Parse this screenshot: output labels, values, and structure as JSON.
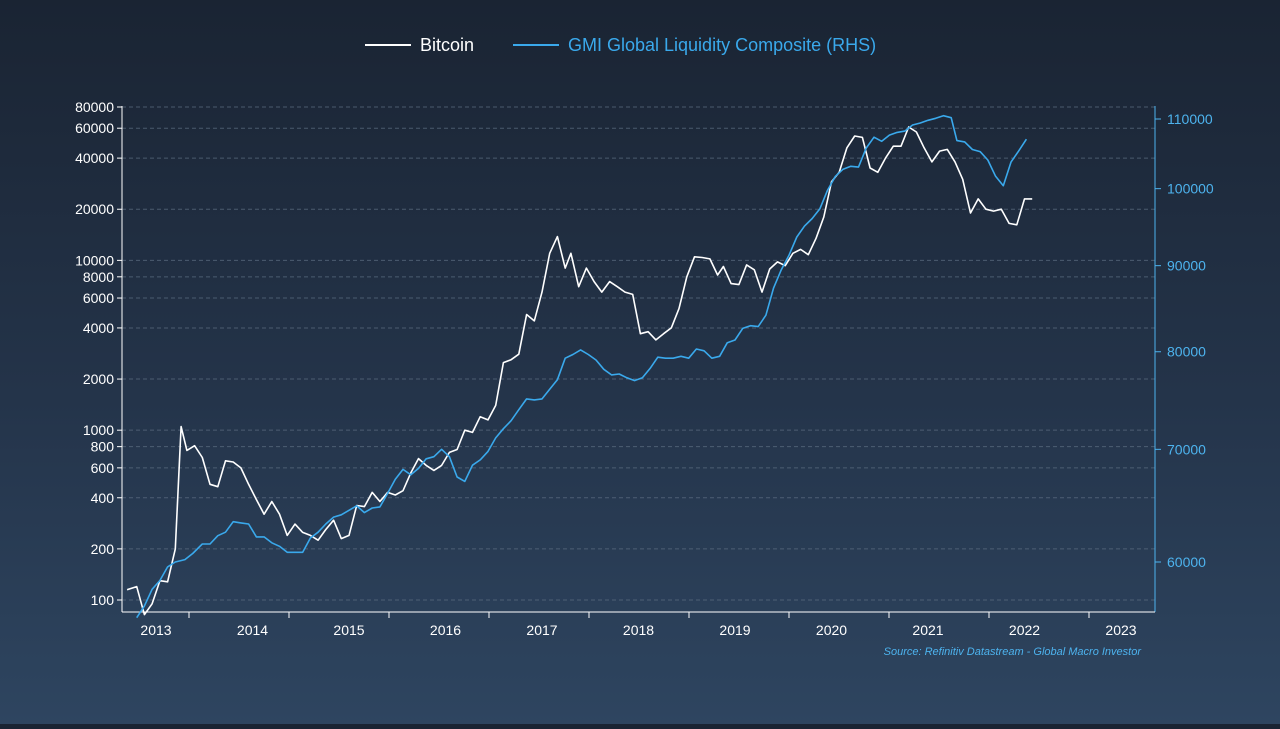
{
  "chart_data": {
    "type": "line",
    "x_ticks": [
      "2013",
      "2014",
      "2015",
      "2016",
      "2017",
      "2018",
      "2019",
      "2020",
      "2021",
      "2022",
      "2023"
    ],
    "y_left_scale": "log",
    "y_left_ticks": [
      "80000",
      "60000",
      "40000",
      "20000",
      "10000",
      "8000",
      "6000",
      "4000",
      "2000",
      "1000",
      "800",
      "600",
      "400",
      "200",
      "100"
    ],
    "y_right_ticks": [
      "110000",
      "100000",
      "90000",
      "80000",
      "70000",
      "60000"
    ],
    "source": "Source: Refinitiv Datastream - Global Macro Investor",
    "grid": "horizontal dashed",
    "legend_position": "top-center",
    "colors": {
      "btc": "#ffffff",
      "gli": "#3aa9ec",
      "axis_right": "#4db3ee",
      "grid": "#5e6f83"
    },
    "series": [
      {
        "name": "Bitcoin",
        "axis": "left",
        "color": "#ffffff",
        "points": [
          [
            2012.7,
            115
          ],
          [
            2012.8,
            120
          ],
          [
            2012.88,
            82
          ],
          [
            2012.96,
            95
          ],
          [
            2013.04,
            130
          ],
          [
            2013.12,
            128
          ],
          [
            2013.2,
            200
          ],
          [
            2013.26,
            1050
          ],
          [
            2013.32,
            760
          ],
          [
            2013.4,
            810
          ],
          [
            2013.48,
            690
          ],
          [
            2013.56,
            480
          ],
          [
            2013.64,
            465
          ],
          [
            2013.72,
            660
          ],
          [
            2013.8,
            650
          ],
          [
            2013.88,
            600
          ],
          [
            2013.96,
            480
          ],
          [
            2014.04,
            390
          ],
          [
            2014.12,
            320
          ],
          [
            2014.2,
            380
          ],
          [
            2014.28,
            320
          ],
          [
            2014.36,
            240
          ],
          [
            2014.44,
            280
          ],
          [
            2014.52,
            250
          ],
          [
            2014.6,
            240
          ],
          [
            2014.68,
            225
          ],
          [
            2014.76,
            260
          ],
          [
            2014.84,
            295
          ],
          [
            2014.92,
            230
          ],
          [
            2015.0,
            240
          ],
          [
            2015.08,
            360
          ],
          [
            2015.16,
            355
          ],
          [
            2015.24,
            430
          ],
          [
            2015.32,
            380
          ],
          [
            2015.4,
            430
          ],
          [
            2015.48,
            415
          ],
          [
            2015.56,
            440
          ],
          [
            2015.64,
            560
          ],
          [
            2015.72,
            680
          ],
          [
            2015.8,
            620
          ],
          [
            2015.88,
            580
          ],
          [
            2015.96,
            620
          ],
          [
            2016.04,
            740
          ],
          [
            2016.12,
            770
          ],
          [
            2016.2,
            1000
          ],
          [
            2016.28,
            970
          ],
          [
            2016.36,
            1200
          ],
          [
            2016.44,
            1150
          ],
          [
            2016.52,
            1400
          ],
          [
            2016.6,
            2500
          ],
          [
            2016.68,
            2600
          ],
          [
            2016.76,
            2800
          ],
          [
            2016.84,
            4800
          ],
          [
            2016.92,
            4400
          ],
          [
            2017.0,
            6500
          ],
          [
            2017.08,
            11000
          ],
          [
            2017.16,
            13800
          ],
          [
            2017.24,
            9000
          ],
          [
            2017.3,
            11000
          ],
          [
            2017.38,
            7000
          ],
          [
            2017.46,
            9000
          ],
          [
            2017.54,
            7500
          ],
          [
            2017.62,
            6500
          ],
          [
            2017.7,
            7500
          ],
          [
            2017.78,
            7000
          ],
          [
            2017.86,
            6500
          ],
          [
            2017.94,
            6300
          ],
          [
            2018.02,
            3700
          ],
          [
            2018.1,
            3800
          ],
          [
            2018.18,
            3400
          ],
          [
            2018.26,
            3700
          ],
          [
            2018.34,
            4000
          ],
          [
            2018.42,
            5200
          ],
          [
            2018.5,
            8000
          ],
          [
            2018.58,
            10500
          ],
          [
            2018.66,
            10400
          ],
          [
            2018.74,
            10200
          ],
          [
            2018.82,
            8200
          ],
          [
            2018.88,
            9200
          ],
          [
            2018.96,
            7300
          ],
          [
            2019.04,
            7200
          ],
          [
            2019.12,
            9400
          ],
          [
            2019.2,
            8800
          ],
          [
            2019.28,
            6500
          ],
          [
            2019.36,
            8900
          ],
          [
            2019.44,
            9800
          ],
          [
            2019.52,
            9300
          ],
          [
            2019.6,
            11000
          ],
          [
            2019.68,
            11600
          ],
          [
            2019.76,
            10800
          ],
          [
            2019.84,
            13500
          ],
          [
            2019.92,
            18000
          ],
          [
            2020.0,
            29000
          ],
          [
            2020.08,
            33000
          ],
          [
            2020.16,
            46000
          ],
          [
            2020.24,
            54000
          ],
          [
            2020.32,
            53000
          ],
          [
            2020.4,
            35000
          ],
          [
            2020.48,
            33000
          ],
          [
            2020.56,
            40000
          ],
          [
            2020.64,
            47000
          ],
          [
            2020.72,
            47000
          ],
          [
            2020.8,
            61000
          ],
          [
            2020.88,
            57000
          ],
          [
            2020.96,
            46000
          ],
          [
            2021.04,
            38000
          ],
          [
            2021.12,
            44000
          ],
          [
            2021.2,
            45000
          ],
          [
            2021.28,
            38000
          ],
          [
            2021.36,
            30000
          ],
          [
            2021.44,
            19000
          ],
          [
            2021.52,
            23000
          ],
          [
            2021.6,
            20000
          ],
          [
            2021.68,
            19500
          ],
          [
            2021.76,
            20000
          ],
          [
            2021.84,
            16500
          ],
          [
            2021.92,
            16200
          ],
          [
            2022.0,
            23000
          ],
          [
            2022.08,
            23000
          ]
        ]
      },
      {
        "name": "GMI Global Liquidity Composite (RHS)",
        "axis": "right",
        "color": "#3aa9ec",
        "points": [
          [
            2012.8,
            55600
          ],
          [
            2012.88,
            56500
          ],
          [
            2012.96,
            57800
          ],
          [
            2013.04,
            58500
          ],
          [
            2013.12,
            59600
          ],
          [
            2013.2,
            60000
          ],
          [
            2013.3,
            60200
          ],
          [
            2013.38,
            60700
          ],
          [
            2013.48,
            61500
          ],
          [
            2013.56,
            61500
          ],
          [
            2013.64,
            62200
          ],
          [
            2013.72,
            62500
          ],
          [
            2013.8,
            63400
          ],
          [
            2013.88,
            63300
          ],
          [
            2013.96,
            63200
          ],
          [
            2014.04,
            62100
          ],
          [
            2014.12,
            62100
          ],
          [
            2014.2,
            61600
          ],
          [
            2014.28,
            61300
          ],
          [
            2014.36,
            60800
          ],
          [
            2014.44,
            60800
          ],
          [
            2014.52,
            60800
          ],
          [
            2014.6,
            62000
          ],
          [
            2014.68,
            62500
          ],
          [
            2014.76,
            63200
          ],
          [
            2014.84,
            63800
          ],
          [
            2014.92,
            64000
          ],
          [
            2015.0,
            64400
          ],
          [
            2015.08,
            64800
          ],
          [
            2015.16,
            64200
          ],
          [
            2015.24,
            64600
          ],
          [
            2015.32,
            64700
          ],
          [
            2015.4,
            65900
          ],
          [
            2015.48,
            67200
          ],
          [
            2015.56,
            68100
          ],
          [
            2015.64,
            67600
          ],
          [
            2015.72,
            68200
          ],
          [
            2015.8,
            69100
          ],
          [
            2015.88,
            69300
          ],
          [
            2015.96,
            70000
          ],
          [
            2016.04,
            69300
          ],
          [
            2016.12,
            67400
          ],
          [
            2016.2,
            67000
          ],
          [
            2016.28,
            68500
          ],
          [
            2016.36,
            69000
          ],
          [
            2016.44,
            69800
          ],
          [
            2016.52,
            71100
          ],
          [
            2016.6,
            72000
          ],
          [
            2016.68,
            72800
          ],
          [
            2016.76,
            73900
          ],
          [
            2016.84,
            75000
          ],
          [
            2016.92,
            74900
          ],
          [
            2017.0,
            75000
          ],
          [
            2017.08,
            76000
          ],
          [
            2017.16,
            77000
          ],
          [
            2017.24,
            79300
          ],
          [
            2017.32,
            79700
          ],
          [
            2017.4,
            80200
          ],
          [
            2017.48,
            79700
          ],
          [
            2017.56,
            79100
          ],
          [
            2017.64,
            78100
          ],
          [
            2017.72,
            77500
          ],
          [
            2017.8,
            77600
          ],
          [
            2017.88,
            77200
          ],
          [
            2017.96,
            76900
          ],
          [
            2018.04,
            77200
          ],
          [
            2018.12,
            78200
          ],
          [
            2018.2,
            79400
          ],
          [
            2018.28,
            79300
          ],
          [
            2018.36,
            79300
          ],
          [
            2018.44,
            79500
          ],
          [
            2018.52,
            79300
          ],
          [
            2018.6,
            80300
          ],
          [
            2018.68,
            80100
          ],
          [
            2018.76,
            79300
          ],
          [
            2018.84,
            79500
          ],
          [
            2018.92,
            81000
          ],
          [
            2019.0,
            81300
          ],
          [
            2019.08,
            82600
          ],
          [
            2019.16,
            82900
          ],
          [
            2019.24,
            82800
          ],
          [
            2019.32,
            84100
          ],
          [
            2019.4,
            87300
          ],
          [
            2019.48,
            89500
          ],
          [
            2019.56,
            91300
          ],
          [
            2019.64,
            93600
          ],
          [
            2019.72,
            95000
          ],
          [
            2019.8,
            96000
          ],
          [
            2019.88,
            97300
          ],
          [
            2019.96,
            99800
          ],
          [
            2020.04,
            101700
          ],
          [
            2020.12,
            102700
          ],
          [
            2020.2,
            103100
          ],
          [
            2020.28,
            103000
          ],
          [
            2020.36,
            105700
          ],
          [
            2020.44,
            107300
          ],
          [
            2020.52,
            106700
          ],
          [
            2020.6,
            107600
          ],
          [
            2020.68,
            108000
          ],
          [
            2020.76,
            108200
          ],
          [
            2020.84,
            109100
          ],
          [
            2020.92,
            109400
          ],
          [
            2021.0,
            109800
          ],
          [
            2021.08,
            110100
          ],
          [
            2021.16,
            110500
          ],
          [
            2021.24,
            110200
          ],
          [
            2021.3,
            106800
          ],
          [
            2021.38,
            106600
          ],
          [
            2021.46,
            105500
          ],
          [
            2021.54,
            105200
          ],
          [
            2021.62,
            104000
          ],
          [
            2021.7,
            101700
          ],
          [
            2021.78,
            100400
          ],
          [
            2021.86,
            103700
          ],
          [
            2021.94,
            105300
          ],
          [
            2022.02,
            107000
          ]
        ]
      }
    ]
  },
  "legend": [
    {
      "label": "Bitcoin",
      "color": "#ffffff"
    },
    {
      "label": "GMI Global Liquidity Composite (RHS)",
      "color": "#3aa9ec"
    }
  ]
}
